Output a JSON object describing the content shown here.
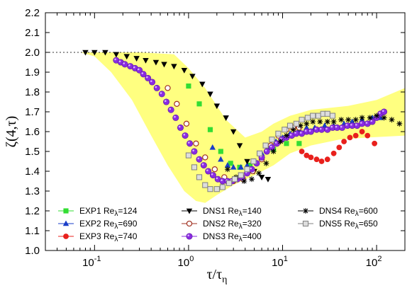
{
  "chart_data": {
    "type": "scatter",
    "x_scale": "log",
    "xlim": [
      0.03,
      200
    ],
    "ylim": [
      1.0,
      2.2
    ],
    "xlabel_main": "τ/τ",
    "xlabel_sub": "η",
    "ylabel": "ζ(4,τ)",
    "x_ticks": [
      0.1,
      1,
      10,
      100
    ],
    "x_tick_base": "10",
    "x_tick_exponents": [
      "-1",
      "0",
      "1",
      "2"
    ],
    "y_ticks": [
      1.0,
      1.1,
      1.2,
      1.3,
      1.4,
      1.5,
      1.6,
      1.7,
      1.8,
      1.9,
      2.0,
      2.1,
      2.2
    ],
    "y_tick_labels": [
      "1.0",
      "1.1",
      "1.2",
      "1.3",
      "1.4",
      "1.5",
      "1.6",
      "1.7",
      "1.8",
      "1.9",
      "2.0",
      "2.1",
      "2.2"
    ],
    "reference_line": {
      "y": 2.0,
      "style": "dotted"
    },
    "band": {
      "color": "#ffff80",
      "upper": [
        [
          0.07,
          2.0
        ],
        [
          0.3,
          2.0
        ],
        [
          0.7,
          1.99
        ],
        [
          1.0,
          1.92
        ],
        [
          1.5,
          1.82
        ],
        [
          2.5,
          1.66
        ],
        [
          4,
          1.57
        ],
        [
          6,
          1.6
        ],
        [
          8,
          1.64
        ],
        [
          12,
          1.68
        ],
        [
          20,
          1.71
        ],
        [
          50,
          1.73
        ],
        [
          100,
          1.76
        ],
        [
          200,
          1.82
        ]
      ],
      "lower": [
        [
          0.07,
          2.0
        ],
        [
          0.1,
          1.98
        ],
        [
          0.15,
          1.9
        ],
        [
          0.25,
          1.76
        ],
        [
          0.4,
          1.58
        ],
        [
          0.6,
          1.43
        ],
        [
          0.9,
          1.3
        ],
        [
          1.2,
          1.25
        ],
        [
          1.5,
          1.24
        ],
        [
          2.0,
          1.28
        ],
        [
          3,
          1.33
        ],
        [
          5,
          1.38
        ],
        [
          8,
          1.43
        ],
        [
          12,
          1.49
        ],
        [
          20,
          1.53
        ],
        [
          40,
          1.56
        ],
        [
          80,
          1.57
        ],
        [
          200,
          1.58
        ]
      ]
    },
    "legend": {
      "columns": 3,
      "position": "bottom-inside"
    },
    "series": [
      {
        "name": "EXP1 Re",
        "name_sub": "λ",
        "name_suffix": "=124",
        "marker": "square",
        "color": "#33dd33",
        "points": [
          [
            1.0,
            1.83
          ],
          [
            1.3,
            1.74
          ],
          [
            1.7,
            1.61
          ],
          [
            2.2,
            1.5
          ],
          [
            2.8,
            1.44
          ],
          [
            3.5,
            1.42
          ],
          [
            4.5,
            1.43
          ],
          [
            6,
            1.47
          ],
          [
            8,
            1.51
          ],
          [
            11,
            1.54
          ],
          [
            15,
            1.54
          ]
        ]
      },
      {
        "name": "EXP2 Re",
        "name_sub": "λ",
        "name_suffix": "=690",
        "marker": "triangle",
        "color": "#1a3ec8",
        "points": [
          [
            1.8,
            1.52
          ],
          [
            2.2,
            1.46
          ],
          [
            2.6,
            1.43
          ],
          [
            3.0,
            1.42
          ],
          [
            3.6,
            1.42
          ],
          [
            4.2,
            1.43
          ],
          [
            5,
            1.45
          ],
          [
            6,
            1.49
          ],
          [
            7,
            1.52
          ],
          [
            8.5,
            1.55
          ],
          [
            10,
            1.57
          ],
          [
            12,
            1.59
          ],
          [
            15,
            1.61
          ],
          [
            18,
            1.62
          ],
          [
            22,
            1.62
          ],
          [
            28,
            1.63
          ],
          [
            35,
            1.63
          ],
          [
            45,
            1.64
          ],
          [
            55,
            1.65
          ],
          [
            70,
            1.66
          ],
          [
            90,
            1.67
          ],
          [
            110,
            1.67
          ]
        ]
      },
      {
        "name": "EXP3 Re",
        "name_sub": "λ",
        "name_suffix": "=740",
        "marker": "circle",
        "color": "#e8201c",
        "points": [
          [
            16,
            1.5
          ],
          [
            18,
            1.48
          ],
          [
            20,
            1.47
          ],
          [
            23,
            1.46
          ],
          [
            26,
            1.45
          ],
          [
            30,
            1.46
          ],
          [
            35,
            1.49
          ],
          [
            40,
            1.52
          ],
          [
            45,
            1.55
          ],
          [
            52,
            1.57
          ],
          [
            60,
            1.58
          ],
          [
            70,
            1.6
          ],
          [
            80,
            1.58
          ],
          [
            95,
            1.54
          ]
        ]
      },
      {
        "name": "DNS1 Re",
        "name_sub": "λ",
        "name_suffix": "=140",
        "marker": "triangle-down",
        "color": "#000000",
        "points": [
          [
            0.08,
            2.0
          ],
          [
            0.1,
            2.0
          ],
          [
            0.13,
            2.0
          ],
          [
            0.17,
            1.99
          ],
          [
            0.22,
            1.98
          ],
          [
            0.28,
            1.97
          ],
          [
            0.35,
            1.96
          ],
          [
            0.45,
            1.95
          ],
          [
            0.55,
            1.94
          ],
          [
            0.7,
            1.93
          ],
          [
            0.9,
            1.91
          ],
          [
            1.1,
            1.88
          ],
          [
            1.4,
            1.84
          ],
          [
            1.7,
            1.79
          ],
          [
            2.0,
            1.73
          ],
          [
            2.5,
            1.67
          ],
          [
            3.0,
            1.6
          ],
          [
            3.5,
            1.53
          ],
          [
            4.2,
            1.45
          ],
          [
            5,
            1.4
          ],
          [
            6,
            1.37
          ],
          [
            7,
            1.36
          ]
        ]
      },
      {
        "name": "DNS2 Re",
        "name_sub": "λ",
        "name_suffix": "=320",
        "marker": "circle-open",
        "color": "#a03020",
        "points": [
          [
            0.6,
            1.82
          ],
          [
            0.75,
            1.74
          ],
          [
            0.95,
            1.64
          ],
          [
            1.2,
            1.54
          ],
          [
            1.5,
            1.47
          ],
          [
            1.9,
            1.41
          ],
          [
            2.4,
            1.37
          ],
          [
            3.0,
            1.35
          ],
          [
            3.8,
            1.36
          ],
          [
            4.8,
            1.4
          ],
          [
            6,
            1.46
          ],
          [
            7.5,
            1.53
          ],
          [
            9,
            1.58
          ],
          [
            11,
            1.61
          ],
          [
            13,
            1.62
          ],
          [
            15,
            1.62
          ]
        ]
      },
      {
        "name": "DNS3 Re",
        "name_sub": "λ",
        "name_suffix": "=400",
        "marker": "circle-purple",
        "color": "#8a2be2",
        "points": [
          [
            0.17,
            1.96
          ],
          [
            0.19,
            1.95
          ],
          [
            0.21,
            1.94
          ],
          [
            0.24,
            1.93
          ],
          [
            0.27,
            1.92
          ],
          [
            0.3,
            1.91
          ],
          [
            0.33,
            1.89
          ],
          [
            0.37,
            1.87
          ],
          [
            0.41,
            1.85
          ],
          [
            0.46,
            1.82
          ],
          [
            0.52,
            1.79
          ],
          [
            0.58,
            1.75
          ],
          [
            0.65,
            1.71
          ],
          [
            0.73,
            1.67
          ],
          [
            0.82,
            1.62
          ],
          [
            0.92,
            1.58
          ],
          [
            1.03,
            1.54
          ],
          [
            1.15,
            1.5
          ],
          [
            1.3,
            1.46
          ],
          [
            1.45,
            1.43
          ],
          [
            1.62,
            1.4
          ],
          [
            1.82,
            1.38
          ],
          [
            2.05,
            1.36
          ],
          [
            2.3,
            1.35
          ],
          [
            2.6,
            1.35
          ],
          [
            2.9,
            1.35
          ],
          [
            3.3,
            1.36
          ],
          [
            3.7,
            1.37
          ],
          [
            4.2,
            1.39
          ],
          [
            4.7,
            1.41
          ],
          [
            5.3,
            1.44
          ],
          [
            6,
            1.47
          ],
          [
            6.8,
            1.5
          ],
          [
            7.7,
            1.52
          ],
          [
            8.7,
            1.54
          ],
          [
            9.8,
            1.56
          ],
          [
            11,
            1.57
          ],
          [
            12.5,
            1.58
          ],
          [
            14,
            1.59
          ],
          [
            16,
            1.59
          ],
          [
            18,
            1.6
          ],
          [
            20,
            1.6
          ],
          [
            23,
            1.61
          ],
          [
            26,
            1.61
          ],
          [
            30,
            1.61
          ],
          [
            34,
            1.62
          ],
          [
            38,
            1.62
          ],
          [
            43,
            1.62
          ],
          [
            49,
            1.63
          ],
          [
            55,
            1.63
          ],
          [
            62,
            1.63
          ],
          [
            70,
            1.64
          ],
          [
            80,
            1.64
          ],
          [
            90,
            1.65
          ],
          [
            100,
            1.67
          ],
          [
            110,
            1.69
          ],
          [
            120,
            1.7
          ]
        ]
      },
      {
        "name": "DNS4 Re",
        "name_sub": "λ",
        "name_suffix": "=600",
        "marker": "star",
        "color": "#000000",
        "points": [
          [
            2.6,
            1.41
          ],
          [
            3.2,
            1.37
          ],
          [
            3.9,
            1.35
          ],
          [
            4.7,
            1.36
          ],
          [
            5.6,
            1.39
          ],
          [
            6.7,
            1.44
          ],
          [
            8,
            1.5
          ],
          [
            9.5,
            1.55
          ],
          [
            11,
            1.58
          ],
          [
            13,
            1.61
          ],
          [
            15.5,
            1.63
          ],
          [
            18,
            1.64
          ],
          [
            21,
            1.65
          ],
          [
            25,
            1.65
          ],
          [
            30,
            1.65
          ],
          [
            35,
            1.65
          ],
          [
            42,
            1.66
          ],
          [
            50,
            1.66
          ],
          [
            60,
            1.66
          ],
          [
            70,
            1.67
          ],
          [
            85,
            1.67
          ],
          [
            100,
            1.68
          ],
          [
            120,
            1.67
          ],
          [
            145,
            1.66
          ],
          [
            175,
            1.64
          ]
        ]
      },
      {
        "name": "DNS5 Re",
        "name_sub": "λ",
        "name_suffix": "=650",
        "marker": "square-open",
        "color": "#808080",
        "points": [
          [
            1.0,
            1.48
          ],
          [
            1.15,
            1.42
          ],
          [
            1.3,
            1.37
          ],
          [
            1.5,
            1.33
          ],
          [
            1.7,
            1.31
          ],
          [
            2.0,
            1.31
          ],
          [
            2.3,
            1.32
          ],
          [
            2.7,
            1.34
          ],
          [
            3.1,
            1.36
          ],
          [
            3.6,
            1.38
          ],
          [
            4.2,
            1.41
          ],
          [
            4.9,
            1.45
          ],
          [
            5.7,
            1.49
          ],
          [
            6.6,
            1.53
          ],
          [
            7.7,
            1.56
          ],
          [
            9,
            1.59
          ],
          [
            10.5,
            1.61
          ],
          [
            12,
            1.63
          ],
          [
            14,
            1.64
          ],
          [
            16,
            1.66
          ],
          [
            18.5,
            1.67
          ],
          [
            21,
            1.68
          ],
          [
            24,
            1.68
          ],
          [
            27,
            1.69
          ],
          [
            30,
            1.69
          ],
          [
            34,
            1.68
          ]
        ]
      }
    ]
  }
}
